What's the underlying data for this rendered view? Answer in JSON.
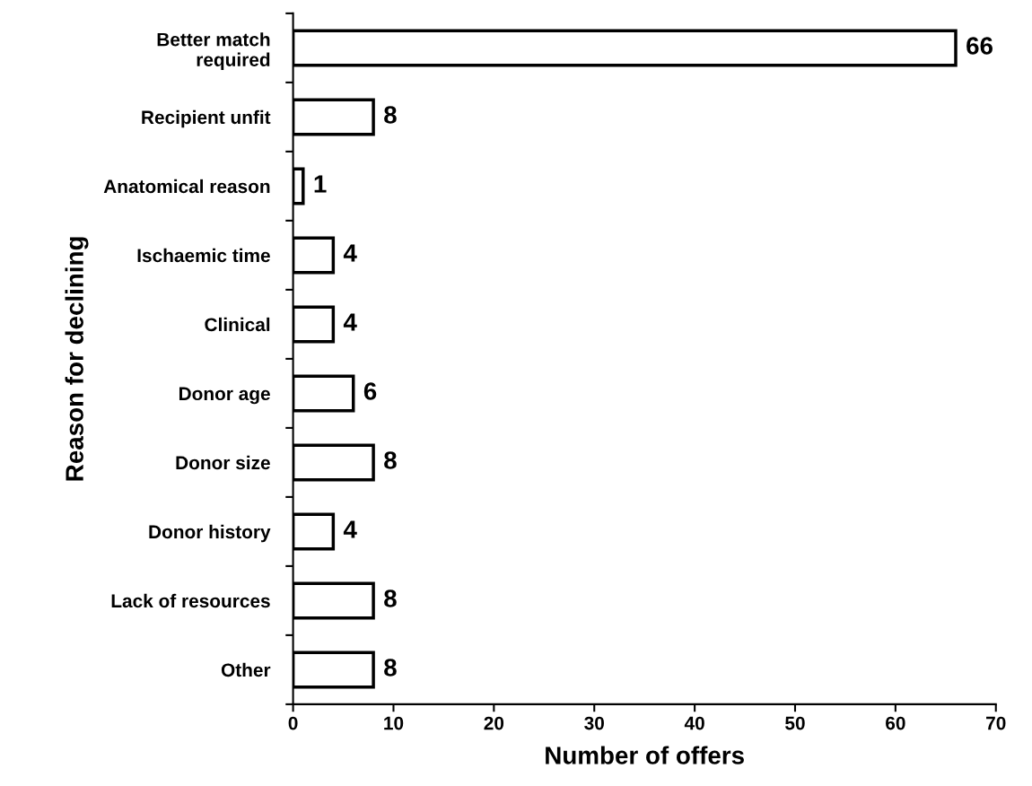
{
  "chart_data": {
    "type": "bar",
    "orientation": "horizontal",
    "xlabel": "Number of offers",
    "ylabel": "Reason for declining",
    "categories": [
      "Better match\nrequired",
      "Recipient unfit",
      "Anatomical reason",
      "Ischaemic time",
      "Clinical",
      "Donor age",
      "Donor size",
      "Donor history",
      "Lack of resources",
      "Other"
    ],
    "values": [
      66,
      8,
      1,
      4,
      4,
      6,
      8,
      4,
      8,
      8
    ],
    "color": "#ffffff",
    "xlim": [
      0,
      70
    ],
    "xticks": [
      0,
      10,
      20,
      30,
      40,
      50,
      60,
      70
    ],
    "data_labels": true,
    "grid": false,
    "legend": false
  }
}
